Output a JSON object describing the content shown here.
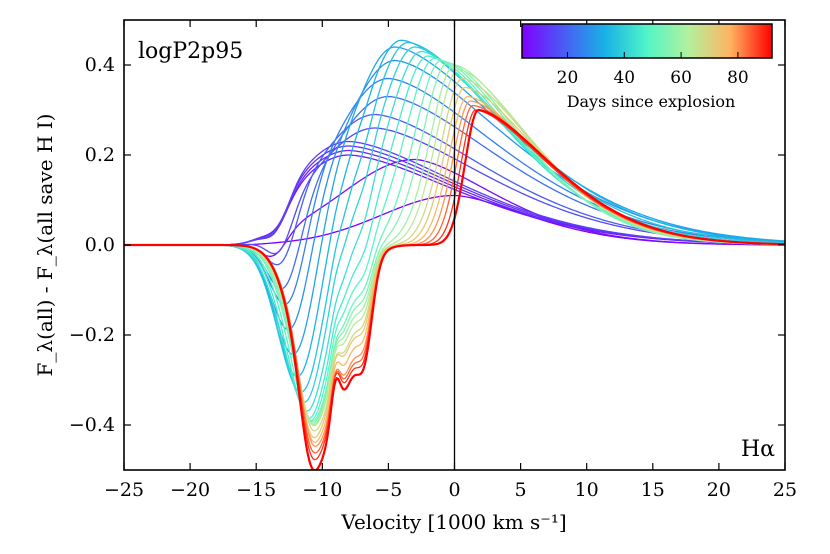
{
  "chart_data": {
    "type": "line",
    "title": "",
    "model_label": "logP2p95",
    "line_label": "Hα",
    "xlabel": "Velocity [1000 km s⁻¹]",
    "ylabel": "F_λ(all) - F_λ(all save H I)",
    "xlim": [
      -25,
      25
    ],
    "ylim": [
      -0.5,
      0.5
    ],
    "xticks": [
      -25,
      -20,
      -15,
      -10,
      -5,
      0,
      5,
      10,
      15,
      20,
      25
    ],
    "xtick_labels": [
      "−25",
      "−20",
      "−15",
      "−10",
      "−5",
      "0",
      "5",
      "10",
      "15",
      "20",
      "25"
    ],
    "yticks": [
      -0.4,
      -0.2,
      0.0,
      0.2,
      0.4
    ],
    "ytick_labels": [
      "−0.4",
      "−0.2",
      "0.0",
      "0.2",
      "0.4"
    ],
    "vertical_line_x": 0,
    "colorbar": {
      "label": "Days since explosion",
      "range": [
        4,
        92
      ],
      "ticks": [
        20,
        40,
        60,
        80
      ],
      "tick_labels": [
        "20",
        "40",
        "60",
        "80"
      ],
      "colormap": [
        "#8000ff",
        "#4a5bf5",
        "#18b2e6",
        "#51f5c8",
        "#b3f09e",
        "#ffb360",
        "#ff0000"
      ]
    },
    "series": [
      {
        "name": "4 d",
        "day": 4,
        "peak_v": 0,
        "peak_a": 0.11,
        "abs_v": -13.8,
        "abs_a": 0.0,
        "abs_w": 1.0,
        "w_l": 5.5,
        "w_r": 6.0
      },
      {
        "name": "6 d",
        "day": 6,
        "peak_v": -3,
        "peak_a": 0.19,
        "abs_v": -13.7,
        "abs_a": 0.05,
        "abs_w": 1.0,
        "w_l": 5.5,
        "w_r": 6.5
      },
      {
        "name": "8 d",
        "day": 8,
        "peak_v": -8,
        "peak_a": 0.2,
        "abs_v": -13.5,
        "abs_a": 0.05,
        "abs_w": 1.0,
        "w_l": 4.5,
        "w_r": 9.0
      },
      {
        "name": "10 d",
        "day": 10,
        "peak_v": -8,
        "peak_a": 0.21,
        "abs_v": -13.5,
        "abs_a": 0.06,
        "abs_w": 1.0,
        "w_l": 4.5,
        "w_r": 9.0
      },
      {
        "name": "12 d",
        "day": 12,
        "peak_v": -8,
        "peak_a": 0.22,
        "abs_v": -13.5,
        "abs_a": 0.06,
        "abs_w": 1.0,
        "w_l": 4.5,
        "w_r": 9.0
      },
      {
        "name": "14 d",
        "day": 14,
        "peak_v": -8,
        "peak_a": 0.23,
        "abs_v": -13.5,
        "abs_a": 0.07,
        "abs_w": 1.0,
        "w_l": 4.5,
        "w_r": 9.0
      },
      {
        "name": "16 d",
        "day": 16,
        "peak_v": -6,
        "peak_a": 0.26,
        "abs_v": -13.2,
        "abs_a": 0.09,
        "abs_w": 1.0,
        "w_l": 4.8,
        "w_r": 9.0
      },
      {
        "name": "19 d",
        "day": 19,
        "peak_v": -6,
        "peak_a": 0.29,
        "abs_v": -13.0,
        "abs_a": 0.12,
        "abs_w": 1.1,
        "w_l": 4.6,
        "w_r": 9.0
      },
      {
        "name": "22 d",
        "day": 22,
        "peak_v": -5,
        "peak_a": 0.33,
        "abs_v": -12.8,
        "abs_a": 0.16,
        "abs_w": 1.2,
        "w_l": 4.5,
        "w_r": 9.0
      },
      {
        "name": "25 d",
        "day": 25,
        "peak_v": -5,
        "peak_a": 0.37,
        "abs_v": -12.5,
        "abs_a": 0.2,
        "abs_w": 1.3,
        "w_l": 4.3,
        "w_r": 9.0
      },
      {
        "name": "28 d",
        "day": 28,
        "peak_v": -4.5,
        "peak_a": 0.41,
        "abs_v": -12.3,
        "abs_a": 0.24,
        "abs_w": 1.4,
        "w_l": 4.0,
        "w_r": 9.0
      },
      {
        "name": "31 d",
        "day": 31,
        "peak_v": -4.5,
        "peak_a": 0.44,
        "abs_v": -12.0,
        "abs_a": 0.28,
        "abs_w": 1.5,
        "w_l": 3.5,
        "w_r": 9.0
      },
      {
        "name": "34 d",
        "day": 34,
        "peak_v": -4,
        "peak_a": 0.455,
        "abs_v": -11.8,
        "abs_a": 0.31,
        "abs_w": 1.6,
        "w_l": 3.2,
        "w_r": 8.5
      },
      {
        "name": "37 d",
        "day": 37,
        "peak_v": -3.5,
        "peak_a": 0.45,
        "abs_v": -11.6,
        "abs_a": 0.33,
        "abs_w": 1.7,
        "w_l": 3.0,
        "w_r": 8.0
      },
      {
        "name": "40 d",
        "day": 40,
        "peak_v": -3,
        "peak_a": 0.44,
        "abs_v": -11.4,
        "abs_a": 0.34,
        "abs_w": 1.7,
        "w_l": 2.8,
        "w_r": 7.5
      },
      {
        "name": "43 d",
        "day": 43,
        "peak_v": -2.5,
        "peak_a": 0.43,
        "abs_v": -11.2,
        "abs_a": 0.35,
        "abs_w": 1.8,
        "w_l": 2.6,
        "w_r": 7.0
      },
      {
        "name": "46 d",
        "day": 46,
        "peak_v": -2,
        "peak_a": 0.42,
        "abs_v": -11.0,
        "abs_a": 0.36,
        "abs_w": 1.8,
        "w_l": 2.4,
        "w_r": 6.8
      },
      {
        "name": "49 d",
        "day": 49,
        "peak_v": -1.5,
        "peak_a": 0.415,
        "abs_v": -10.8,
        "abs_a": 0.36,
        "abs_w": 1.8,
        "w_l": 2.2,
        "w_r": 6.5
      },
      {
        "name": "52 d",
        "day": 52,
        "peak_v": -1,
        "peak_a": 0.41,
        "abs_v": -10.6,
        "abs_a": 0.36,
        "abs_w": 1.8,
        "w_l": 2.0,
        "w_r": 6.3
      },
      {
        "name": "56 d",
        "day": 56,
        "peak_v": -0.5,
        "peak_a": 0.405,
        "abs_v": -10.5,
        "abs_a": 0.36,
        "abs_w": 1.8,
        "w_l": 1.9,
        "w_r": 6.0
      },
      {
        "name": "60 d",
        "day": 60,
        "peak_v": 0,
        "peak_a": 0.4,
        "abs_v": -10.4,
        "abs_a": 0.36,
        "abs_w": 1.8,
        "w_l": 1.8,
        "w_r": 6.0
      },
      {
        "name": "64 d",
        "day": 64,
        "peak_v": 0.3,
        "peak_a": 0.39,
        "abs_v": -10.3,
        "abs_a": 0.36,
        "abs_w": 1.8,
        "w_l": 1.7,
        "w_r": 6.0
      },
      {
        "name": "68 d",
        "day": 68,
        "peak_v": 0.6,
        "peak_a": 0.37,
        "abs_v": -10.2,
        "abs_a": 0.37,
        "abs_w": 1.8,
        "w_l": 1.6,
        "w_r": 6.0
      },
      {
        "name": "72 d",
        "day": 72,
        "peak_v": 0.8,
        "peak_a": 0.35,
        "abs_v": -10.2,
        "abs_a": 0.38,
        "abs_w": 1.8,
        "w_l": 1.5,
        "w_r": 6.0
      },
      {
        "name": "76 d",
        "day": 76,
        "peak_v": 1.0,
        "peak_a": 0.33,
        "abs_v": -10.1,
        "abs_a": 0.39,
        "abs_w": 1.8,
        "w_l": 1.4,
        "w_r": 6.0
      },
      {
        "name": "80 d",
        "day": 80,
        "peak_v": 1.2,
        "peak_a": 0.32,
        "abs_v": -10.0,
        "abs_a": 0.4,
        "abs_w": 1.8,
        "w_l": 1.3,
        "w_r": 6.0
      },
      {
        "name": "84 d",
        "day": 84,
        "peak_v": 1.4,
        "peak_a": 0.31,
        "abs_v": -10.0,
        "abs_a": 0.41,
        "abs_w": 1.8,
        "w_l": 1.2,
        "w_r": 6.0
      },
      {
        "name": "88 d",
        "day": 88,
        "peak_v": 1.6,
        "peak_a": 0.3,
        "abs_v": -10.0,
        "abs_a": 0.42,
        "abs_w": 1.8,
        "w_l": 1.1,
        "w_r": 6.0
      },
      {
        "name": "92 d",
        "day": 92,
        "peak_v": 1.8,
        "peak_a": 0.3,
        "abs_v": -10.0,
        "abs_a": 0.44,
        "abs_w": 1.8,
        "w_l": 1.0,
        "w_r": 6.0
      }
    ]
  }
}
